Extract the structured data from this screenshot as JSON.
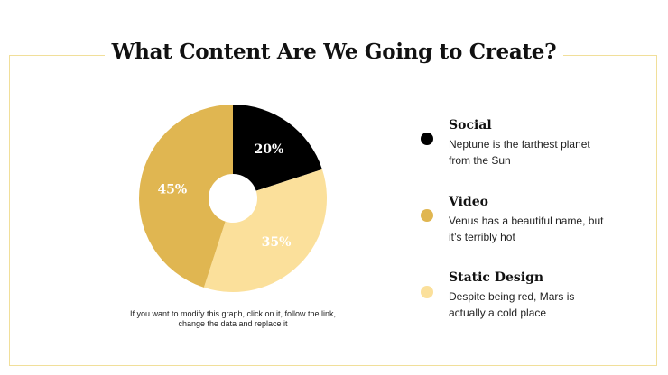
{
  "slide": {
    "title": "What Content Are We Going to Create?",
    "note": "If you want to modify this graph, click on it, follow the link, change the data and replace it"
  },
  "chart_data": {
    "type": "pie",
    "donut": true,
    "slices": [
      {
        "label": "Social",
        "value": 20,
        "display": "20%",
        "color": "#000000",
        "label_color": "#ffffff"
      },
      {
        "label": "Static Design",
        "value": 35,
        "display": "35%",
        "color": "#fbe09b",
        "label_color": "#ffffff"
      },
      {
        "label": "Video",
        "value": 45,
        "display": "45%",
        "color": "#e0b651",
        "label_color": "#ffffff"
      }
    ]
  },
  "legend": {
    "items": [
      {
        "title": "Social",
        "desc": "Neptune is the farthest planet from the Sun",
        "color": "#000000"
      },
      {
        "title": "Video",
        "desc": "Venus has a beautiful name, but it’s terribly hot",
        "color": "#e0b651"
      },
      {
        "title": "Static Design",
        "desc": "Despite being red, Mars is actually a cold place",
        "color": "#fbe09b"
      }
    ]
  }
}
